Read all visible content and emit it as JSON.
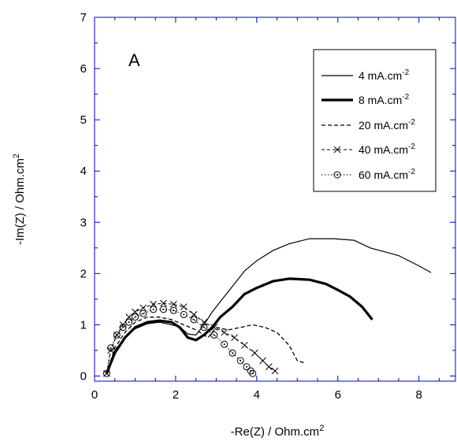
{
  "chart_data": {
    "type": "scatter",
    "panel_label": "A",
    "xlabel": "-Re(Z) / Ohm.cm",
    "xlabel_sup": "2",
    "ylabel": "-Im(Z) / Ohm.cm",
    "ylabel_sup": "2",
    "xlim": [
      0,
      8.9
    ],
    "ylim": [
      -0.1,
      7
    ],
    "xticks": [
      0,
      2,
      4,
      6,
      8
    ],
    "yticks": [
      0,
      1,
      2,
      3,
      4,
      5,
      6,
      7
    ],
    "grid": false,
    "legend_position": "top-right",
    "axis_color": "#0000cc",
    "series": [
      {
        "name": "4 mA.cm",
        "name_sup": "-2",
        "style": "thin-line",
        "x": [
          0.3,
          0.5,
          0.75,
          1.0,
          1.3,
          1.6,
          1.9,
          2.1,
          2.3,
          2.5,
          2.7,
          2.9,
          3.1,
          3.4,
          3.7,
          4.0,
          4.4,
          4.8,
          5.3,
          5.9,
          6.4,
          6.8,
          7.5,
          8.0,
          8.3
        ],
        "y": [
          0.05,
          0.5,
          0.75,
          0.92,
          1.02,
          1.05,
          1.0,
          0.96,
          0.82,
          0.8,
          1.0,
          1.25,
          1.45,
          1.75,
          2.05,
          2.25,
          2.45,
          2.58,
          2.68,
          2.68,
          2.65,
          2.5,
          2.35,
          2.15,
          2.02
        ]
      },
      {
        "name": "8 mA.cm",
        "name_sup": "-2",
        "style": "thick-line",
        "x": [
          0.3,
          0.5,
          0.75,
          1.0,
          1.3,
          1.6,
          1.9,
          2.1,
          2.3,
          2.5,
          2.7,
          2.9,
          3.1,
          3.4,
          3.7,
          4.0,
          4.4,
          4.8,
          5.3,
          5.7,
          6.0,
          6.3,
          6.6,
          6.85
        ],
        "y": [
          0.05,
          0.45,
          0.75,
          0.95,
          1.05,
          1.08,
          1.05,
          0.95,
          0.75,
          0.7,
          0.8,
          0.95,
          1.15,
          1.35,
          1.6,
          1.72,
          1.85,
          1.9,
          1.88,
          1.8,
          1.68,
          1.55,
          1.35,
          1.1
        ]
      },
      {
        "name": "20 mA.cm",
        "name_sup": "-2",
        "style": "dashed-line",
        "x": [
          0.3,
          0.5,
          0.75,
          1.0,
          1.3,
          1.6,
          1.9,
          2.2,
          2.5,
          2.8,
          3.0,
          3.3,
          3.6,
          3.9,
          4.2,
          4.5,
          4.8,
          5.0,
          5.2
        ],
        "y": [
          0.05,
          0.55,
          0.85,
          1.05,
          1.15,
          1.15,
          1.1,
          1.0,
          0.9,
          0.75,
          0.95,
          0.9,
          0.95,
          1.0,
          0.95,
          0.85,
          0.6,
          0.3,
          0.25
        ]
      },
      {
        "name": "40 mA.cm",
        "name_sup": "-2",
        "style": "dashed-cross",
        "x": [
          0.3,
          0.4,
          0.55,
          0.7,
          0.85,
          1.0,
          1.2,
          1.45,
          1.7,
          1.95,
          2.2,
          2.45,
          2.7,
          2.95,
          3.2,
          3.45,
          3.7,
          3.95,
          4.15,
          4.3,
          4.45
        ],
        "y": [
          0.05,
          0.5,
          0.8,
          1.0,
          1.15,
          1.25,
          1.33,
          1.4,
          1.42,
          1.4,
          1.35,
          1.2,
          1.05,
          0.95,
          0.85,
          0.75,
          0.6,
          0.45,
          0.3,
          0.18,
          0.1
        ]
      },
      {
        "name": "60 mA.cm",
        "name_sup": "-2",
        "style": "dotted-circle",
        "x": [
          0.3,
          0.4,
          0.55,
          0.7,
          0.85,
          1.0,
          1.2,
          1.45,
          1.7,
          1.95,
          2.2,
          2.45,
          2.7,
          2.95,
          3.2,
          3.4,
          3.6,
          3.75,
          3.85,
          3.9
        ],
        "y": [
          0.05,
          0.55,
          0.8,
          0.95,
          1.05,
          1.15,
          1.22,
          1.3,
          1.3,
          1.28,
          1.2,
          1.1,
          0.95,
          0.8,
          0.62,
          0.45,
          0.3,
          0.18,
          0.1,
          0.05
        ]
      }
    ]
  }
}
